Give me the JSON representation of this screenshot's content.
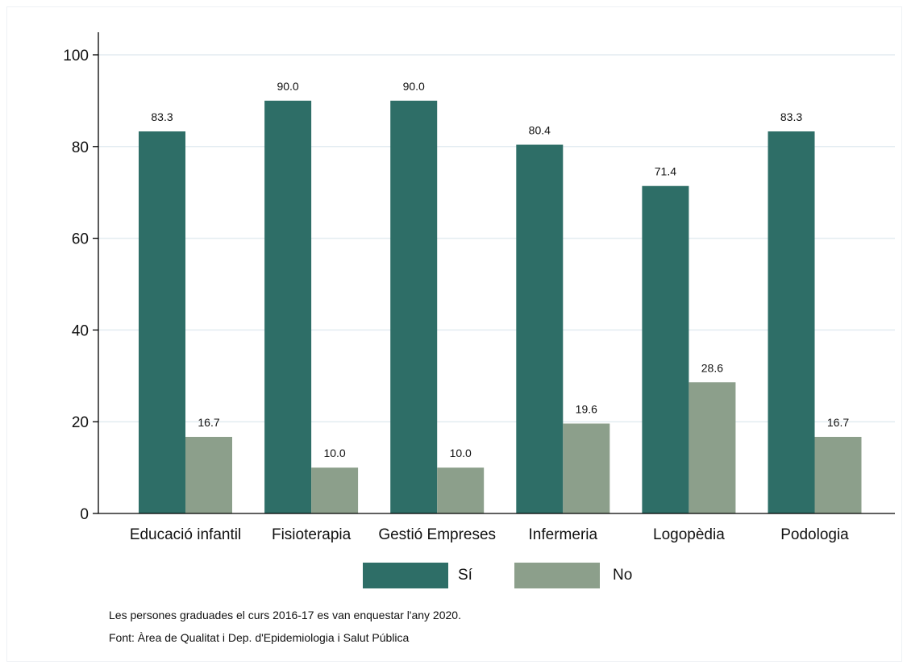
{
  "chart_data": {
    "type": "bar",
    "categories": [
      "Educació infantil",
      "Fisioterapia",
      "Gestió Empreses",
      "Infermeria",
      "Logopèdia",
      "Podologia"
    ],
    "series": [
      {
        "name": "Sí",
        "color": "#2e6e67",
        "values": [
          83.3,
          90.0,
          90.0,
          80.4,
          71.4,
          83.3
        ],
        "labels": [
          "83.3",
          "90.0",
          "90.0",
          "80.4",
          "71.4",
          "83.3"
        ]
      },
      {
        "name": "No",
        "color": "#8c9f8b",
        "values": [
          16.7,
          10.0,
          10.0,
          19.6,
          28.6,
          16.7
        ],
        "labels": [
          "16.7",
          "10.0",
          "10.0",
          "19.6",
          "28.6",
          "16.7"
        ]
      }
    ],
    "yticks": [
      "0",
      "20",
      "40",
      "60",
      "80",
      "100"
    ],
    "ylim": [
      0,
      100
    ],
    "grid": true,
    "gridColor": "#e3ecf1",
    "axisColor": "#000000",
    "legend": "bottom-center",
    "notes": [
      "Les persones graduades el curs 2016-17 es van enquestar l'any 2020.",
      "Font: Àrea de Qualitat i Dep. d'Epidemiologia i Salut Pública"
    ]
  }
}
